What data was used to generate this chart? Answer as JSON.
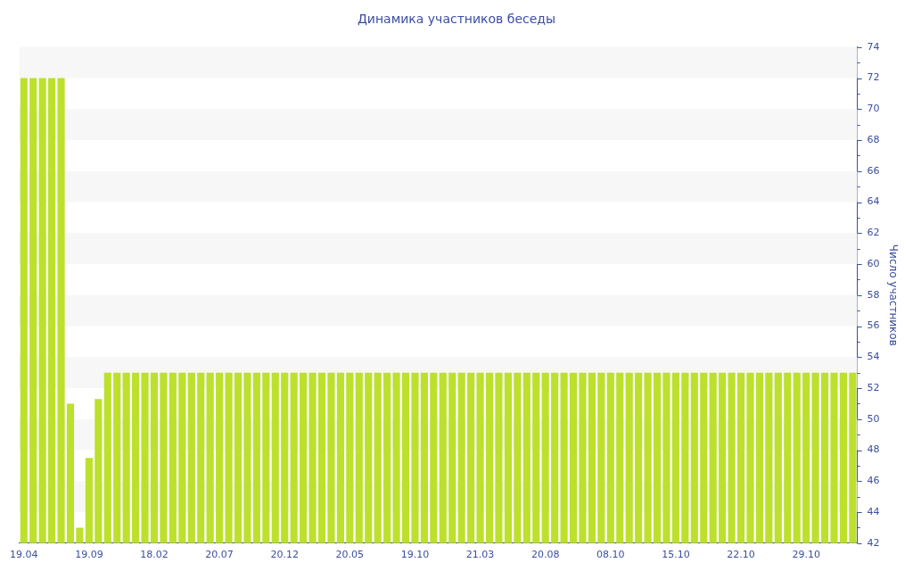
{
  "chart_data": {
    "type": "bar",
    "title": "Динамика участников беседы",
    "ylabel": "Число участников",
    "categories": [
      "19.04",
      null,
      null,
      null,
      null,
      null,
      null,
      "19.09",
      null,
      null,
      null,
      null,
      null,
      null,
      "18.02",
      null,
      null,
      null,
      null,
      null,
      null,
      "20.07",
      null,
      null,
      null,
      null,
      null,
      null,
      "20.12",
      null,
      null,
      null,
      null,
      null,
      null,
      "20.05",
      null,
      null,
      null,
      null,
      null,
      null,
      "19.10",
      null,
      null,
      null,
      null,
      null,
      null,
      "21.03",
      null,
      null,
      null,
      null,
      null,
      null,
      "20.08",
      null,
      null,
      null,
      null,
      null,
      null,
      "08.10",
      null,
      null,
      null,
      null,
      null,
      null,
      "15.10",
      null,
      null,
      null,
      null,
      null,
      null,
      "22.10",
      null,
      null,
      null,
      null,
      null,
      null,
      "29.10",
      null,
      null,
      null,
      null,
      null
    ],
    "values": [
      72,
      72,
      72,
      72,
      72,
      51,
      43,
      47.5,
      51.3,
      53,
      53,
      53,
      53,
      53,
      53,
      53,
      53,
      53,
      53,
      53,
      53,
      53,
      53,
      53,
      53,
      53,
      53,
      53,
      53,
      53,
      53,
      53,
      53,
      53,
      53,
      53,
      53,
      53,
      53,
      53,
      53,
      53,
      53,
      53,
      53,
      53,
      53,
      53,
      53,
      53,
      53,
      53,
      53,
      53,
      53,
      53,
      53,
      53,
      53,
      53,
      53,
      53,
      53,
      53,
      53,
      53,
      53,
      53,
      53,
      53,
      53,
      53,
      53,
      53,
      53,
      53,
      53,
      53,
      53,
      53,
      53,
      53,
      53,
      53,
      53,
      53,
      53,
      53,
      53,
      53
    ],
    "color": "#bde02c",
    "ylim": [
      42,
      74
    ],
    "yticks": [
      42,
      {
        "value": 43,
        "label": null
      },
      44,
      {
        "value": 45,
        "label": null
      },
      46,
      {
        "value": 47,
        "label": null
      },
      48,
      {
        "value": 49,
        "label": null
      },
      50,
      {
        "value": 51,
        "label": null
      },
      52,
      {
        "value": 53,
        "label": null
      },
      54,
      {
        "value": 55,
        "label": null
      },
      56,
      {
        "value": 57,
        "label": null
      },
      58,
      {
        "value": 59,
        "label": null
      },
      60,
      {
        "value": 61,
        "label": null
      },
      62,
      {
        "value": 63,
        "label": null
      },
      64,
      {
        "value": 65,
        "label": null
      },
      66,
      {
        "value": 67,
        "label": null
      },
      68,
      {
        "value": 69,
        "label": null
      },
      70,
      {
        "value": 71,
        "label": null
      },
      72,
      {
        "value": 73,
        "label": null
      },
      74
    ],
    "bands": [
      {
        "axis": "y",
        "from": 72,
        "to": 74,
        "color": "#f7f7f7"
      },
      {
        "axis": "y",
        "from": 68,
        "to": 70,
        "color": "#f7f7f7"
      },
      {
        "axis": "y",
        "from": 64,
        "to": 66,
        "color": "#f7f7f7"
      },
      {
        "axis": "y",
        "from": 60,
        "to": 62,
        "color": "#f7f7f7"
      },
      {
        "axis": "y",
        "from": 56,
        "to": 58,
        "color": "#f7f7f7"
      },
      {
        "axis": "y",
        "from": 52,
        "to": 54,
        "color": "#f7f7f7"
      },
      {
        "axis": "y",
        "from": 48,
        "to": 50,
        "color": "#f7f7f7"
      },
      {
        "axis": "y",
        "from": 44,
        "to": 46,
        "color": "#f7f7f7"
      }
    ],
    "legend": false
  }
}
